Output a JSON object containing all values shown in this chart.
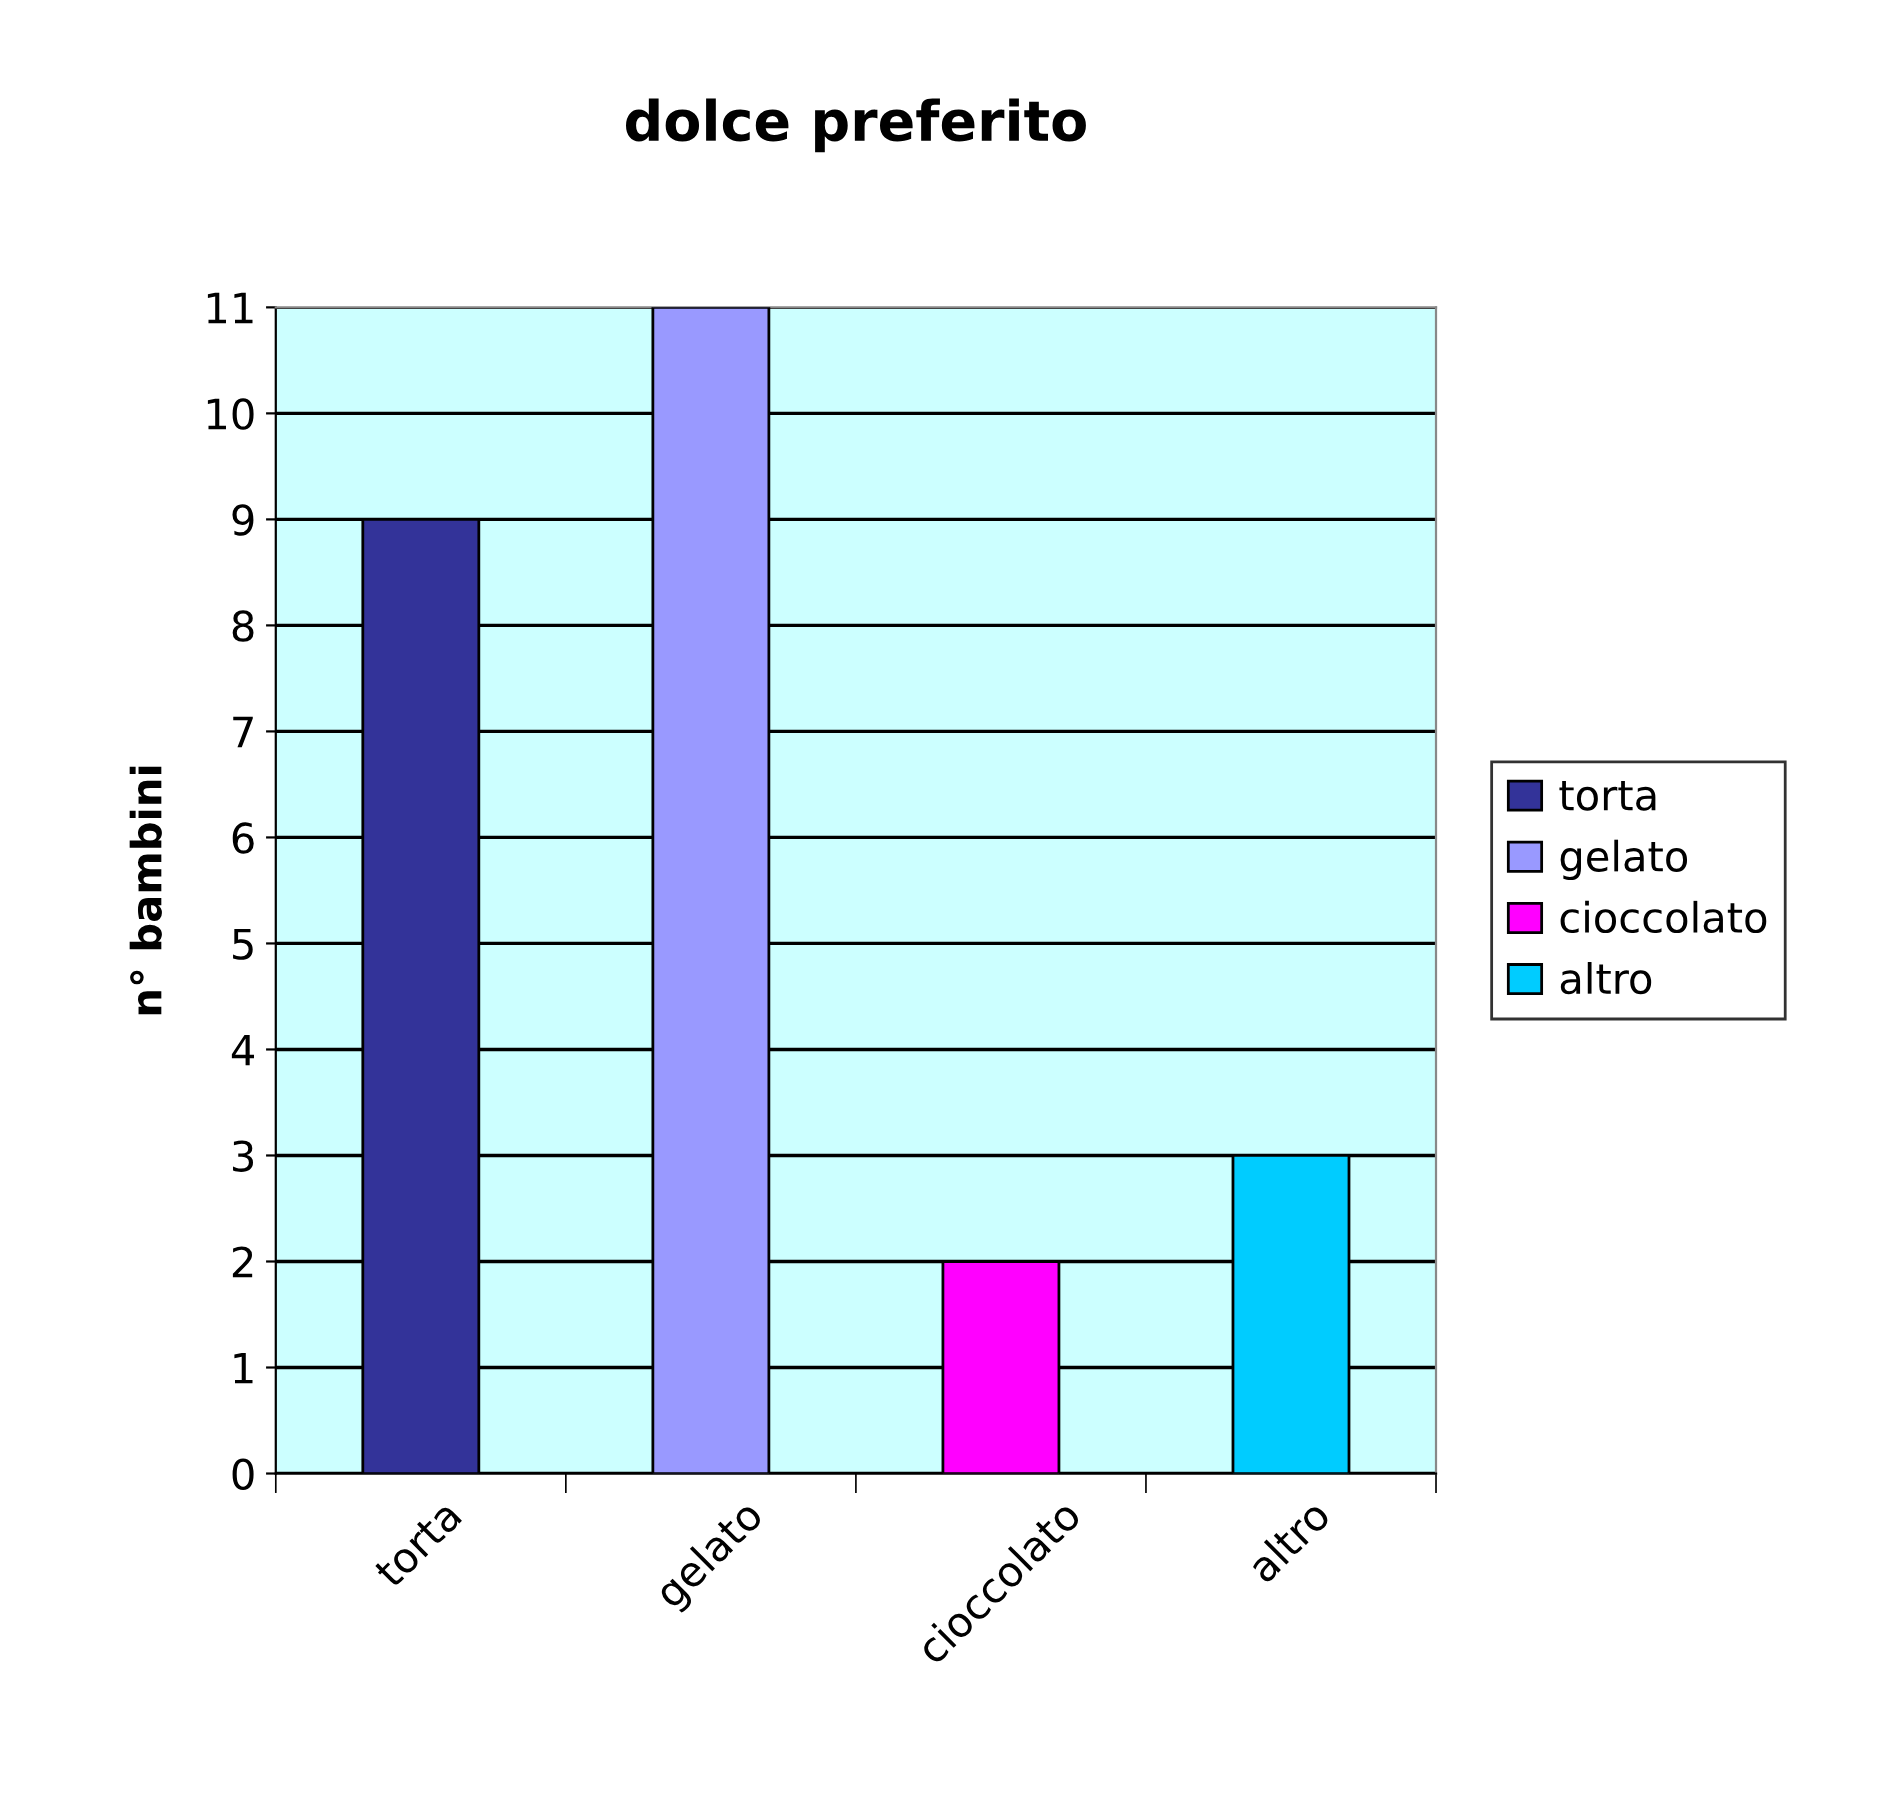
{
  "chart_data": {
    "type": "bar",
    "title": "dolce preferito",
    "ylabel": "n° bambini",
    "categories": [
      "torta",
      "gelato",
      "cioccolato",
      "altro"
    ],
    "series": [
      {
        "name": "torta",
        "color": "#333399",
        "values": [
          9,
          null,
          null,
          null
        ]
      },
      {
        "name": "gelato",
        "color": "#9999ff",
        "values": [
          null,
          11,
          null,
          null
        ]
      },
      {
        "name": "cioccolato",
        "color": "#ff00ff",
        "values": [
          null,
          null,
          2,
          null
        ]
      },
      {
        "name": "altro",
        "color": "#00ccff",
        "values": [
          null,
          null,
          null,
          3
        ]
      }
    ],
    "ylim": [
      0,
      11
    ],
    "yticks": [
      0,
      1,
      2,
      3,
      4,
      5,
      6,
      7,
      8,
      9,
      10,
      11
    ],
    "grid": "y",
    "legend": "right"
  }
}
